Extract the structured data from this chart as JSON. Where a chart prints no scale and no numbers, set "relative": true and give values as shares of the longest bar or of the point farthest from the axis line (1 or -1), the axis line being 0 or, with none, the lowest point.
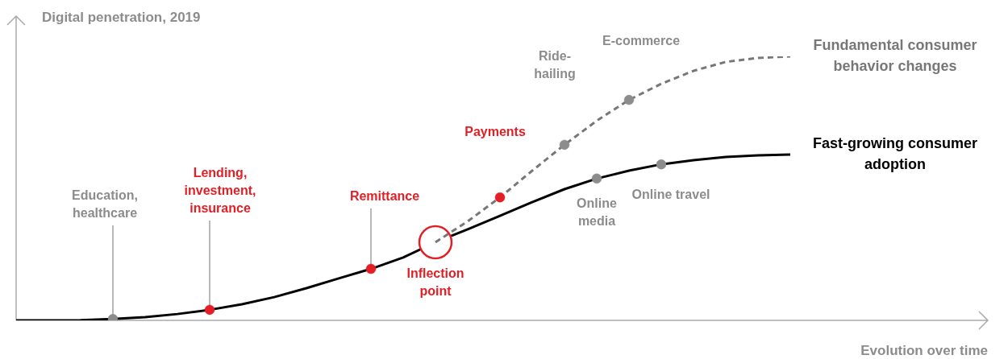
{
  "chart_data": {
    "type": "line",
    "relative": true,
    "legend": false,
    "ylabel": "Digital penetration, 2019",
    "xlabel": "Evolution over time",
    "categories": [
      null,
      null,
      null,
      null,
      null,
      null,
      null,
      null,
      null,
      null,
      null,
      null,
      null,
      null,
      null,
      null,
      null,
      null,
      null,
      null,
      null,
      null,
      null,
      null,
      null
    ],
    "series": [
      {
        "name": "Fast-growing consumer adoption",
        "color": "#000000",
        "line_style": "solid",
        "colors": [
          null,
          null,
          null,
          "#8c8c8c",
          null,
          null,
          "#e31e24",
          null,
          null,
          null,
          null,
          "#e31e24",
          null,
          "#e31e24",
          null,
          null,
          null,
          null,
          "#8c8c8c",
          null,
          "#8c8c8c",
          null,
          null,
          null,
          null
        ],
        "values": [
          0,
          0,
          0.001,
          0.005,
          0.012,
          0.024,
          0.04,
          0.061,
          0.088,
          0.122,
          0.159,
          0.195,
          0.238,
          0.296,
          0.345,
          0.396,
          0.448,
          0.497,
          0.537,
          0.567,
          0.591,
          0.607,
          0.619,
          0.625,
          0.628
        ]
      },
      {
        "name": "Fundamental consumer behavior changes",
        "color": "#777777",
        "line_style": "dashed",
        "colors": [
          null,
          null,
          null,
          null,
          null,
          null,
          null,
          null,
          null,
          null,
          null,
          null,
          null,
          null,
          null,
          "#e31e24",
          null,
          "#8c8c8c",
          null,
          "#8c8c8c",
          null,
          null,
          null,
          null,
          null
        ],
        "values": [
          null,
          null,
          null,
          null,
          null,
          null,
          null,
          null,
          null,
          null,
          null,
          null,
          null,
          0.296,
          0.375,
          0.466,
          0.567,
          0.665,
          0.756,
          0.835,
          0.896,
          0.945,
          0.979,
          0.994,
          1
        ]
      }
    ],
    "annotations": [
      "Education, healthcare",
      "Lending, investment, insurance",
      "Remittance",
      "Inflection point",
      "Payments",
      "Ride-hailing",
      "E-commerce",
      "Online media",
      "Online travel"
    ]
  }
}
